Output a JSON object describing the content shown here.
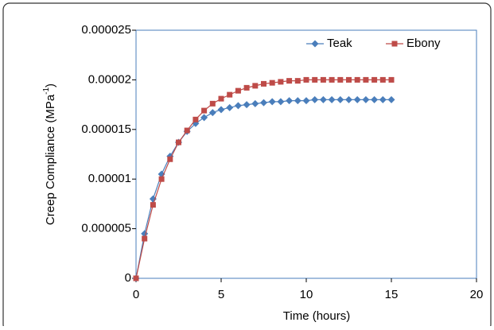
{
  "chart_data": {
    "type": "line",
    "x_label": "Time (hours)",
    "y_label": {
      "text": "Creep Compliance (MPa",
      "sup": "-1",
      "end": ")"
    },
    "x": [
      0,
      0.5,
      1,
      1.5,
      2,
      2.5,
      3,
      3.5,
      4,
      4.5,
      5,
      5.5,
      6,
      6.5,
      7,
      7.5,
      8,
      8.5,
      9,
      9.5,
      10,
      10.5,
      11,
      11.5,
      12,
      12.5,
      13,
      13.5,
      14,
      14.5,
      15
    ],
    "series": [
      {
        "name": "Teak",
        "color": "#4a7ebb",
        "marker": "diamond",
        "values": [
          0,
          4.5e-06,
          8e-06,
          1.05e-05,
          1.23e-05,
          1.37e-05,
          1.48e-05,
          1.56e-05,
          1.62e-05,
          1.67e-05,
          1.7e-05,
          1.72e-05,
          1.74e-05,
          1.75e-05,
          1.76e-05,
          1.77e-05,
          1.78e-05,
          1.78e-05,
          1.79e-05,
          1.79e-05,
          1.79e-05,
          1.8e-05,
          1.8e-05,
          1.8e-05,
          1.8e-05,
          1.8e-05,
          1.8e-05,
          1.8e-05,
          1.8e-05,
          1.8e-05,
          1.8e-05
        ]
      },
      {
        "name": "Ebony",
        "color": "#be4b48",
        "marker": "square",
        "values": [
          0,
          4e-06,
          7.4e-06,
          1e-05,
          1.2e-05,
          1.37e-05,
          1.49e-05,
          1.6e-05,
          1.69e-05,
          1.76e-05,
          1.81e-05,
          1.85e-05,
          1.89e-05,
          1.92e-05,
          1.94e-05,
          1.96e-05,
          1.97e-05,
          1.98e-05,
          1.99e-05,
          1.99e-05,
          2e-05,
          2e-05,
          2e-05,
          2e-05,
          2e-05,
          2e-05,
          2e-05,
          2e-05,
          2e-05,
          2e-05,
          2e-05
        ]
      }
    ],
    "xlim": [
      0,
      20
    ],
    "xticks": [
      0,
      5,
      10,
      15,
      20
    ],
    "ylim": [
      0,
      2.5e-05
    ],
    "yticks": [
      0,
      5e-06,
      1e-05,
      1.5e-05,
      2e-05,
      2.5e-05
    ],
    "grid": false,
    "legend": "top-right"
  }
}
